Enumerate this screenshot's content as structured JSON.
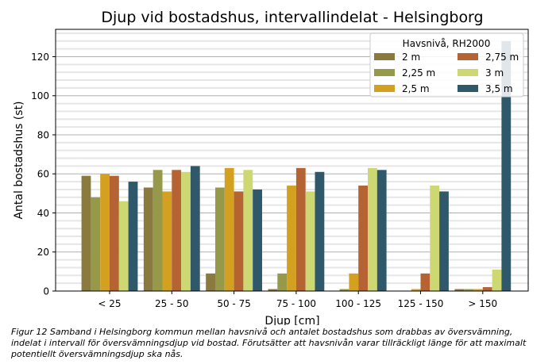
{
  "chart_data": {
    "type": "bar",
    "title": "Djup vid bostadshus, intervallindelat - Helsingborg",
    "xlabel": "Djup [cm]",
    "ylabel": "Antal bostadshus (st)",
    "ylim": [
      0,
      134
    ],
    "yticks": [
      0,
      20,
      40,
      60,
      80,
      100,
      120
    ],
    "grid": true,
    "legend": {
      "title": "Havsnivå, RH2000",
      "placement": "top-right"
    },
    "categories": [
      "< 25",
      "25 - 50",
      "50 - 75",
      "75 - 100",
      "100 - 125",
      "125 - 150",
      "> 150"
    ],
    "series": [
      {
        "name": "2 m",
        "color": "#8a7a3e",
        "values": [
          59,
          53,
          9,
          1,
          0,
          0,
          1
        ]
      },
      {
        "name": "2,25 m",
        "color": "#97994a",
        "values": [
          48,
          62,
          53,
          9,
          1,
          0,
          1
        ]
      },
      {
        "name": "2,5 m",
        "color": "#d4a020",
        "values": [
          60,
          51,
          63,
          54,
          9,
          1,
          1
        ]
      },
      {
        "name": "2,75 m",
        "color": "#b56333",
        "values": [
          59,
          62,
          51,
          63,
          54,
          9,
          2
        ]
      },
      {
        "name": "3 m",
        "color": "#cdd872",
        "values": [
          46,
          61,
          62,
          51,
          63,
          54,
          11
        ]
      },
      {
        "name": "3,5 m",
        "color": "#30586b",
        "values": [
          56,
          64,
          52,
          61,
          62,
          51,
          128
        ]
      }
    ]
  },
  "caption": "Figur 12 Samband i Helsingborg kommun mellan havsnivå och antalet bostadshus som drabbas av översvämning, indelat i intervall för översvämningsdjup vid bostad. Förutsätter att havsnivån varar tillräckligt länge för att maximalt potentiellt översvämningsdjup ska nås."
}
